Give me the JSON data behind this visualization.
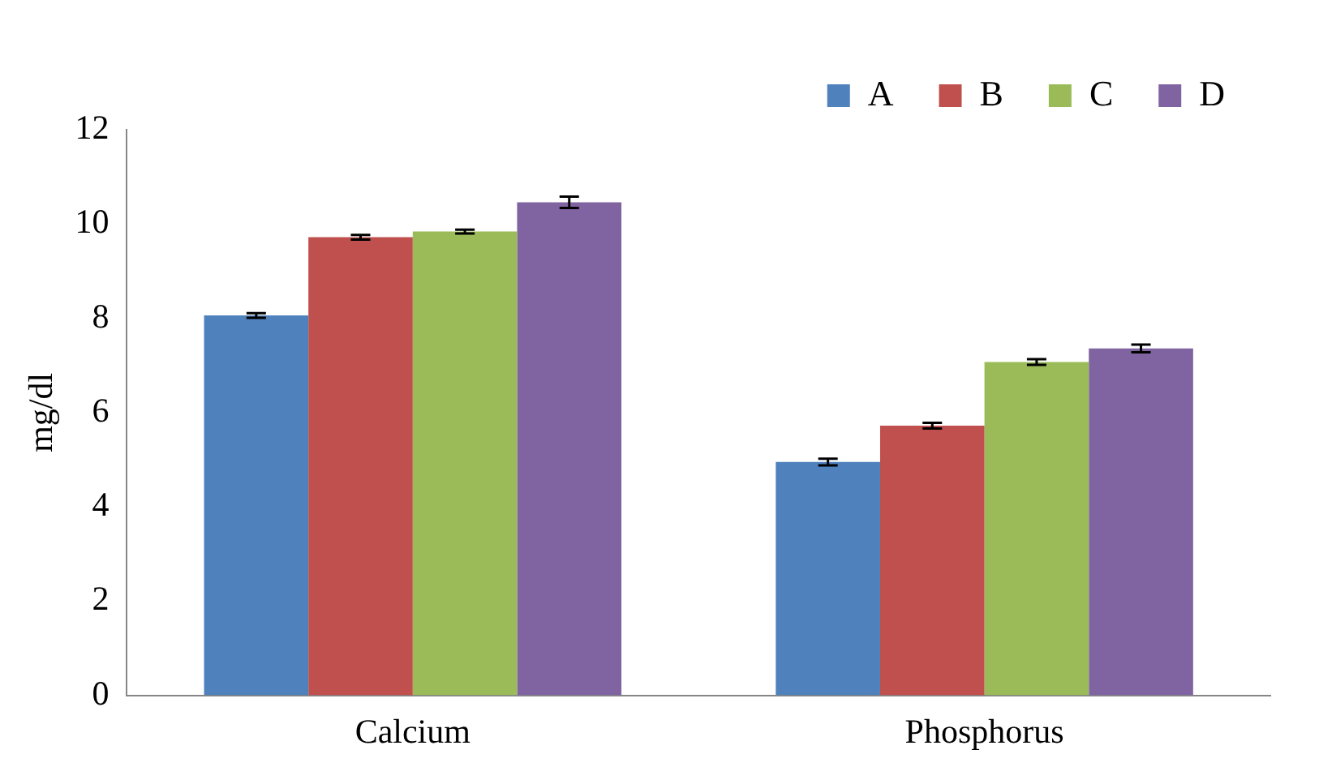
{
  "chart_data": {
    "type": "bar",
    "ylabel": "mg/dl",
    "categories": [
      "Calcium",
      "Phosphorus"
    ],
    "series": [
      {
        "name": "A",
        "color": "#4f81bd",
        "values": [
          8.06,
          4.95
        ],
        "errors": [
          0.05,
          0.07
        ]
      },
      {
        "name": "B",
        "color": "#c0504d",
        "values": [
          9.72,
          5.72
        ],
        "errors": [
          0.05,
          0.06
        ]
      },
      {
        "name": "C",
        "color": "#9bbb59",
        "values": [
          9.84,
          7.07
        ],
        "errors": [
          0.04,
          0.06
        ]
      },
      {
        "name": "D",
        "color": "#8064a2",
        "values": [
          10.46,
          7.36
        ],
        "errors": [
          0.12,
          0.08
        ]
      }
    ],
    "ylim": [
      0,
      12
    ],
    "yticks": [
      0,
      2,
      4,
      6,
      8,
      10,
      12
    ],
    "grid": false,
    "legend": "top right"
  }
}
